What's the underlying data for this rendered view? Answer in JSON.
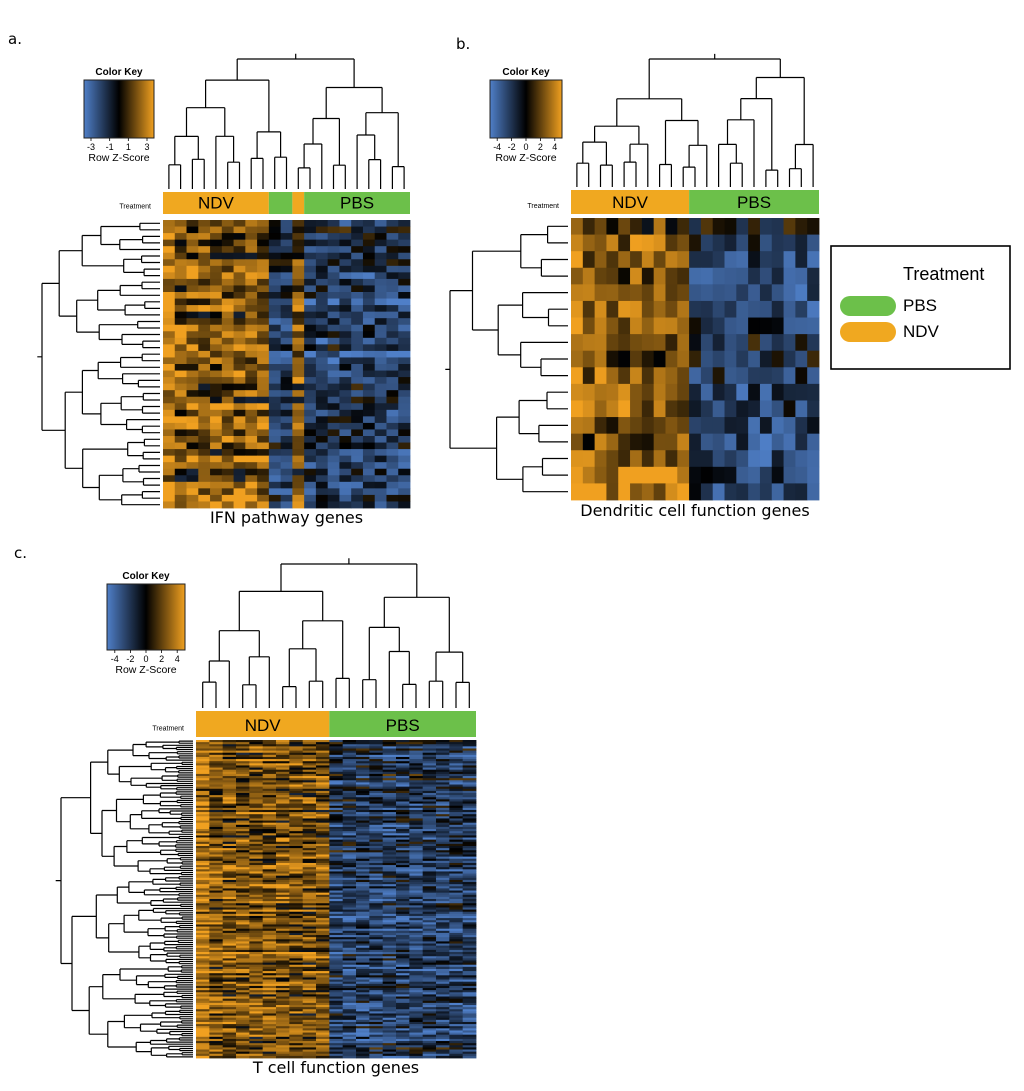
{
  "figure": {
    "panel_labels": [
      "a.",
      "b.",
      "c."
    ],
    "colors": {
      "low": "#4f7fc8",
      "mid": "#000000",
      "high": "#f0a020",
      "ndv": "#f0a820",
      "pbs": "#6cc04a"
    },
    "legend": {
      "title": "Treatment",
      "items": [
        {
          "label": "PBS",
          "color": "#6cc04a"
        },
        {
          "label": "NDV",
          "color": "#f0a820"
        }
      ]
    }
  },
  "chart_data": [
    {
      "type": "heatmap",
      "panel": "a.",
      "title": "IFN pathway genes",
      "color_key": {
        "title": "Color Key",
        "label": "Row Z-Score",
        "ticks": [
          "-3",
          "-1",
          "1",
          "3"
        ]
      },
      "side_label": "Treatment",
      "groups": [
        {
          "label": "NDV",
          "columns": 9
        },
        {
          "label": "",
          "columns": 2,
          "group": "PBS"
        },
        {
          "label": "",
          "columns": 1,
          "group": "NDV"
        },
        {
          "label": "PBS",
          "columns": 9
        }
      ],
      "columns": 21,
      "rows": 44
    },
    {
      "type": "heatmap",
      "panel": "b.",
      "title": "Dendritic cell function genes",
      "color_key": {
        "title": "Color Key",
        "label": "Row Z-Score",
        "ticks": [
          "-4",
          "-2",
          "0",
          "2",
          "4"
        ]
      },
      "side_label": "Treatment",
      "groups": [
        {
          "label": "NDV",
          "columns": 10
        },
        {
          "label": "PBS",
          "columns": 11
        }
      ],
      "columns": 21,
      "rows": 17
    },
    {
      "type": "heatmap",
      "panel": "c.",
      "title": "T cell function genes",
      "color_key": {
        "title": "Color Key",
        "label": "Row Z-Score",
        "ticks": [
          "-4",
          "-2",
          "0",
          "2",
          "4"
        ]
      },
      "side_label": "Treatment",
      "groups": [
        {
          "label": "NDV",
          "columns": 10
        },
        {
          "label": "PBS",
          "columns": 11
        }
      ],
      "columns": 21,
      "rows": 150
    }
  ]
}
